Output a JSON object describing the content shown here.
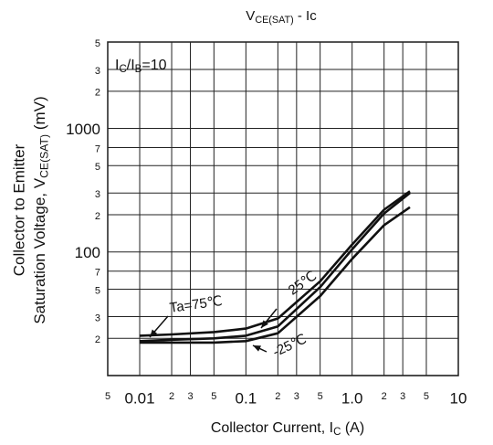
{
  "chart_data": {
    "type": "line",
    "title": [
      "V",
      "CE(SAT)",
      " - Ic"
    ],
    "y_label": [
      "Collector to Emitter",
      [
        "Saturation Voltage, V",
        "CE(SAT)",
        " (mV)"
      ]
    ],
    "x_label": [
      "Collector Current, I",
      "C",
      " (A)"
    ],
    "annotation": [
      "I",
      "C",
      "/I",
      "B",
      "=10"
    ],
    "log_x": true,
    "log_y": true,
    "grid": true,
    "xlim": [
      0.005,
      10
    ],
    "ylim": [
      10,
      5000
    ],
    "xticks": [
      {
        "value": 0.005,
        "label": "5"
      },
      0.01,
      {
        "value": 0.02,
        "label": "2"
      },
      {
        "value": 0.03,
        "label": "3"
      },
      {
        "value": 0.05,
        "label": "5"
      },
      0.1,
      {
        "value": 0.2,
        "label": "2"
      },
      {
        "value": 0.3,
        "label": "3"
      },
      {
        "value": 0.5,
        "label": "5"
      },
      {
        "value": 1,
        "label": "1.0"
      },
      {
        "value": 2,
        "label": "2"
      },
      {
        "value": 3,
        "label": "3"
      },
      {
        "value": 5,
        "label": "5"
      },
      10
    ],
    "yticks": [
      {
        "value": 20,
        "label": "2"
      },
      {
        "value": 30,
        "label": "3"
      },
      {
        "value": 50,
        "label": "5"
      },
      {
        "value": 70,
        "label": "7"
      },
      100,
      {
        "value": 200,
        "label": "2"
      },
      {
        "value": 300,
        "label": "3"
      },
      {
        "value": 500,
        "label": "5"
      },
      {
        "value": 700,
        "label": "7"
      },
      1000,
      {
        "value": 2000,
        "label": "2"
      },
      {
        "value": 3000,
        "label": "3"
      },
      {
        "value": 5000,
        "label": "5"
      }
    ],
    "x": [
      0.01,
      0.02,
      0.05,
      0.1,
      0.2,
      0.5,
      1,
      2,
      3.5
    ],
    "series": [
      {
        "name": "Ta=75℃",
        "color": "#111111",
        "values": [
          21,
          21.5,
          22.5,
          24,
          29,
          58,
          115,
          220,
          310
        ]
      },
      {
        "name": "25℃",
        "color": "#111111",
        "values": [
          19,
          19.5,
          20,
          21,
          25,
          52,
          105,
          205,
          300
        ]
      },
      {
        "name": "-25℃",
        "color": "#111111",
        "values": [
          18.5,
          18.5,
          18.5,
          19,
          22,
          44,
          88,
          165,
          230
        ]
      }
    ]
  }
}
